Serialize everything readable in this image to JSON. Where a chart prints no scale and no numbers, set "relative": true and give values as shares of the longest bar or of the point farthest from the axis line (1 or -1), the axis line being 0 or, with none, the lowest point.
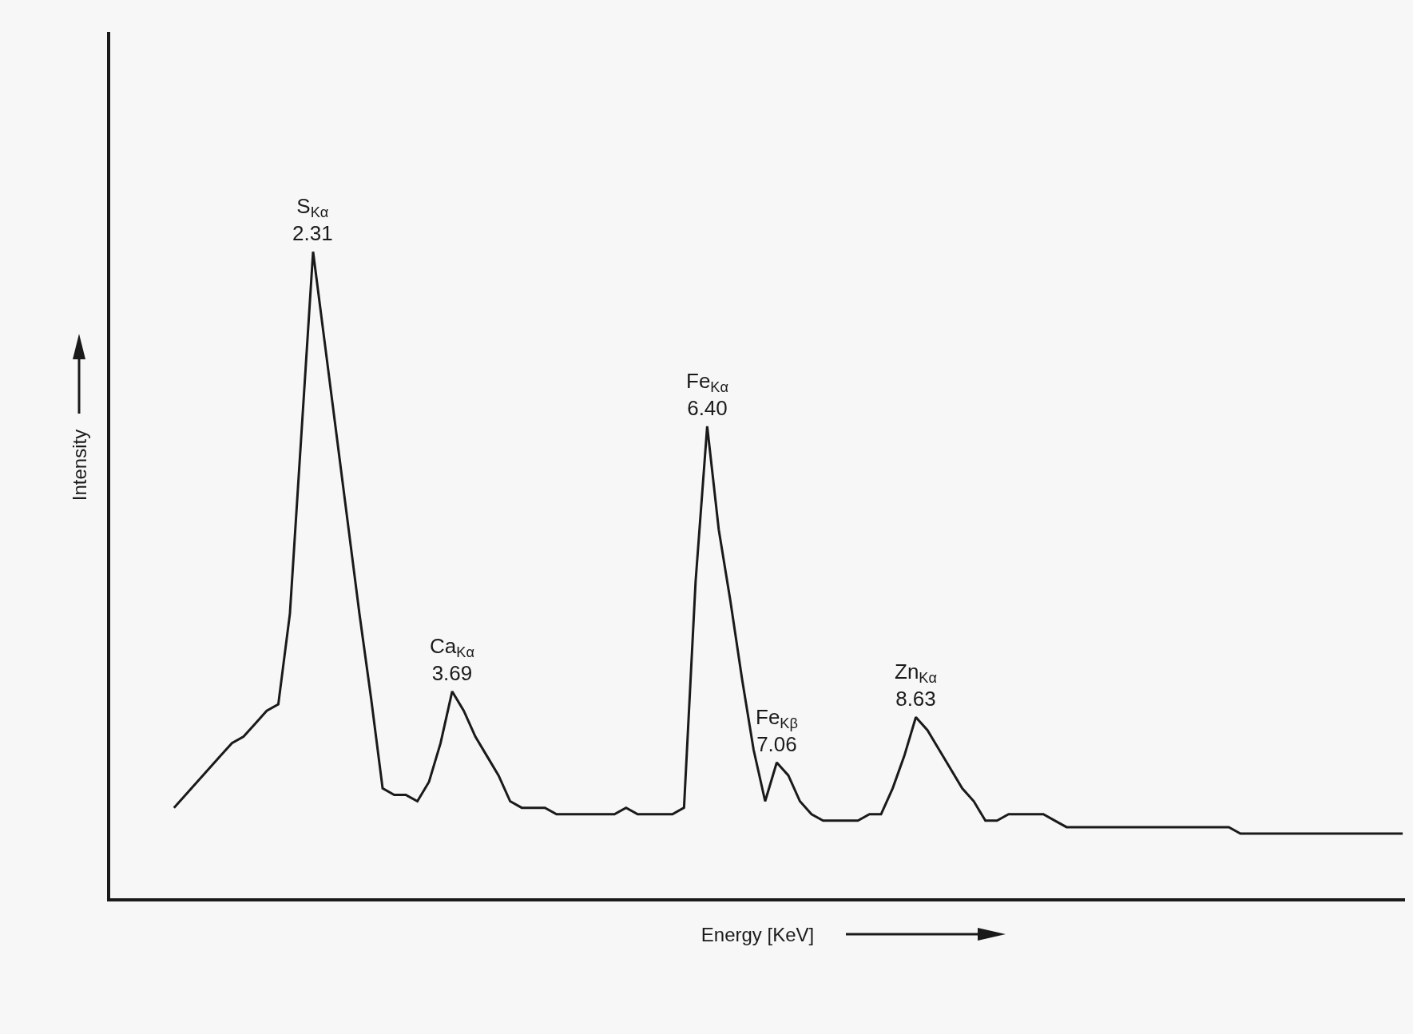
{
  "chart_data": {
    "type": "line",
    "relative": true,
    "xlabel": "Energy [KeV]",
    "ylabel": "Intensity",
    "grid": false,
    "marker": "none",
    "line_style": "solid",
    "categories": [
      null,
      null,
      null,
      null,
      null,
      null,
      null,
      null,
      null,
      null,
      null,
      null,
      null,
      null,
      null,
      null,
      null,
      null,
      null,
      null,
      null,
      null,
      null,
      null,
      null,
      null,
      null,
      null,
      null,
      null,
      null,
      null,
      null,
      null,
      null,
      null,
      null,
      null,
      null,
      null,
      null,
      null,
      null,
      null,
      null,
      null,
      null,
      null,
      null,
      null,
      null,
      null,
      null,
      null,
      null,
      null,
      null,
      null,
      null,
      null,
      null,
      null,
      null,
      null,
      null,
      null,
      null,
      null,
      null,
      null,
      null,
      null,
      null,
      null,
      null,
      null,
      null,
      null,
      null,
      null,
      null,
      null,
      null,
      null,
      null,
      null,
      null,
      null,
      null,
      null,
      null,
      null,
      null,
      null,
      null,
      null,
      null,
      null,
      null,
      null,
      null,
      null,
      null,
      null,
      null,
      null,
      null
    ],
    "series": [
      {
        "color": "#1a1a1a",
        "values": [
          0.14,
          0.16,
          0.18,
          0.2,
          0.22,
          0.24,
          0.25,
          0.27,
          0.29,
          0.3,
          0.44,
          0.72,
          1.0,
          0.86,
          0.72,
          0.58,
          0.44,
          0.31,
          0.17,
          0.16,
          0.16,
          0.15,
          0.18,
          0.24,
          0.32,
          0.29,
          0.25,
          0.22,
          0.19,
          0.15,
          0.14,
          0.14,
          0.14,
          0.13,
          0.13,
          0.13,
          0.13,
          0.13,
          0.13,
          0.14,
          0.13,
          0.13,
          0.13,
          0.13,
          0.14,
          0.49,
          0.73,
          0.57,
          0.46,
          0.34,
          0.23,
          0.15,
          0.21,
          0.19,
          0.15,
          0.13,
          0.12,
          0.12,
          0.12,
          0.12,
          0.13,
          0.13,
          0.17,
          0.22,
          0.28,
          0.26,
          0.23,
          0.2,
          0.17,
          0.15,
          0.12,
          0.12,
          0.13,
          0.13,
          0.13,
          0.13,
          0.12,
          0.11,
          0.11,
          0.11,
          0.11,
          0.11,
          0.11,
          0.11,
          0.11,
          0.11,
          0.11,
          0.11,
          0.11,
          0.11,
          0.11,
          0.11,
          0.1,
          0.1,
          0.1,
          0.1,
          0.1,
          0.1,
          0.1,
          0.1,
          0.1,
          0.1,
          0.1,
          0.1,
          0.1,
          0.1,
          0.1
        ]
      }
    ],
    "annotations": [
      {
        "text": "S$_{Kα}$\n2.31",
        "y": 1.0
      },
      {
        "text": "Ca$_{Kα}$\n3.69",
        "y": 0.32
      },
      {
        "text": "Fe$_{Kα}$\n6.40",
        "y": 0.73
      },
      {
        "text": "Fe$_{Kβ}$\n7.06",
        "y": 0.21
      },
      {
        "text": "Zn$_{Kα}$\n8.63",
        "y": 0.28
      }
    ]
  }
}
